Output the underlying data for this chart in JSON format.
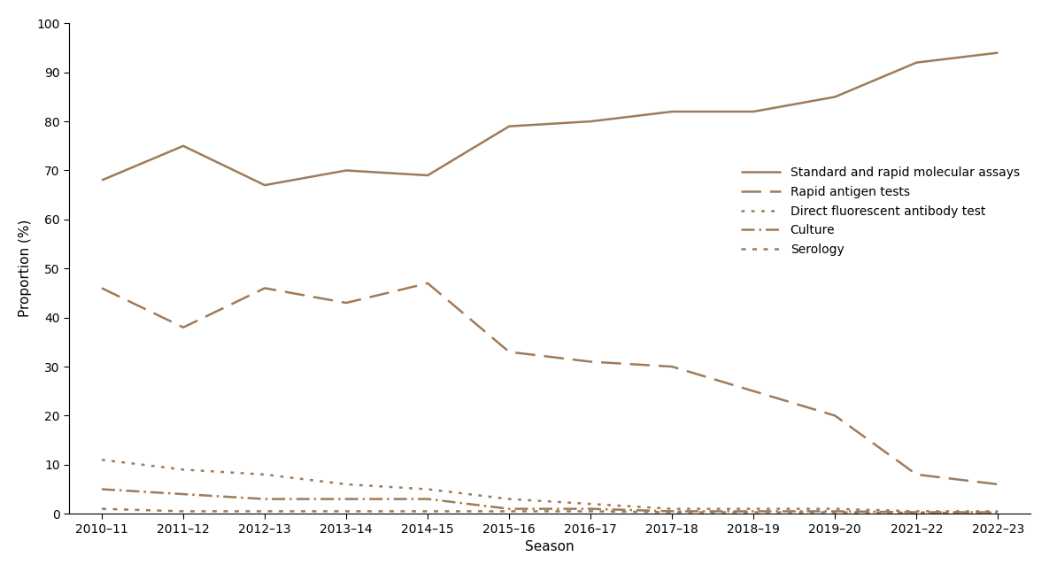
{
  "seasons": [
    "2010–11",
    "2011–12",
    "2012–13",
    "2013–14",
    "2014–15",
    "2015–16",
    "2016–17",
    "2017–18",
    "2018–19",
    "2019–20",
    "2021–22",
    "2022–23"
  ],
  "molecular": [
    68,
    75,
    67,
    70,
    69,
    79,
    80,
    82,
    82,
    85,
    92,
    94
  ],
  "rapid_antigen": [
    46,
    38,
    46,
    43,
    47,
    33,
    31,
    30,
    25,
    20,
    8,
    6
  ],
  "dfa": [
    11,
    9,
    8,
    6,
    5,
    3,
    2,
    1,
    1,
    1,
    0.5,
    0.5
  ],
  "culture": [
    5,
    4,
    3,
    3,
    3,
    1,
    1,
    0.5,
    0.5,
    0.5,
    0.3,
    0.3
  ],
  "serology": [
    1,
    0.5,
    0.5,
    0.5,
    0.5,
    0.5,
    0.5,
    0.3,
    0.3,
    0.3,
    0.2,
    0.2
  ],
  "color": "#9e7b5a",
  "background_color": "#ffffff",
  "ylabel": "Proportion (%)",
  "xlabel": "Season",
  "ylim": [
    0,
    100
  ],
  "yticks": [
    0,
    10,
    20,
    30,
    40,
    50,
    60,
    70,
    80,
    90,
    100
  ],
  "legend_labels": [
    "Standard and rapid molecular assays",
    "Rapid antigen tests",
    "Direct fluorescent antibody test",
    "Culture",
    "Serology"
  ],
  "axis_fontsize": 11,
  "tick_fontsize": 10,
  "legend_fontsize": 10,
  "linewidth": 1.8
}
